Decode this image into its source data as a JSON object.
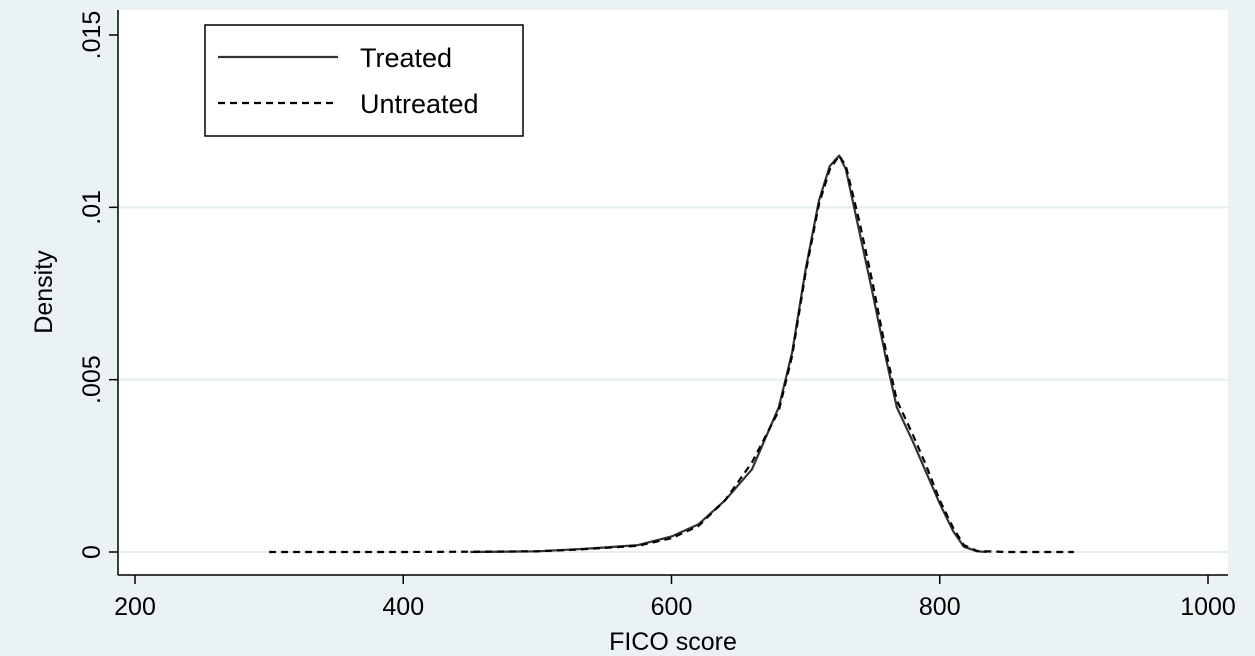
{
  "chart_data": {
    "type": "line",
    "title": "",
    "xlabel": "FICO score",
    "ylabel": "Density",
    "xlim": [
      200,
      1000
    ],
    "ylim": [
      0,
      0.015
    ],
    "x_ticks": [
      200,
      400,
      600,
      800,
      1000
    ],
    "x_tick_labels": [
      "200",
      "400",
      "600",
      "800",
      "1000"
    ],
    "y_ticks": [
      0,
      0.005,
      0.01,
      0.015
    ],
    "y_tick_labels": [
      "0",
      ".005",
      ".01",
      ".015"
    ],
    "grid": true,
    "legend_position": "top-left",
    "series": [
      {
        "name": "Treated",
        "style": "solid",
        "color": "#333333",
        "points": [
          [
            450,
            0
          ],
          [
            500,
            2e-05
          ],
          [
            530,
            8e-05
          ],
          [
            550,
            0.00013
          ],
          [
            575,
            0.0002
          ],
          [
            600,
            0.00045
          ],
          [
            620,
            0.0008
          ],
          [
            640,
            0.0015
          ],
          [
            660,
            0.0024
          ],
          [
            680,
            0.0042
          ],
          [
            690,
            0.0058
          ],
          [
            700,
            0.0082
          ],
          [
            710,
            0.0102
          ],
          [
            718,
            0.0112
          ],
          [
            725,
            0.0115
          ],
          [
            730,
            0.0111
          ],
          [
            740,
            0.0093
          ],
          [
            750,
            0.0075
          ],
          [
            760,
            0.0056
          ],
          [
            768,
            0.0042
          ],
          [
            780,
            0.0032
          ],
          [
            790,
            0.0023
          ],
          [
            800,
            0.0014
          ],
          [
            810,
            0.0006
          ],
          [
            818,
            0.00015
          ],
          [
            828,
            2e-05
          ],
          [
            835,
            0
          ]
        ]
      },
      {
        "name": "Untreated",
        "style": "dashed",
        "color": "#000000",
        "points": [
          [
            300,
            0
          ],
          [
            350,
            0
          ],
          [
            400,
            0
          ],
          [
            450,
            1e-05
          ],
          [
            500,
            2e-05
          ],
          [
            530,
            7e-05
          ],
          [
            550,
            0.00012
          ],
          [
            575,
            0.00018
          ],
          [
            600,
            0.0004
          ],
          [
            620,
            0.00075
          ],
          [
            640,
            0.0015
          ],
          [
            660,
            0.0026
          ],
          [
            680,
            0.0041
          ],
          [
            690,
            0.0057
          ],
          [
            700,
            0.0081
          ],
          [
            710,
            0.0101
          ],
          [
            718,
            0.0111
          ],
          [
            725,
            0.0115
          ],
          [
            730,
            0.0112
          ],
          [
            740,
            0.0096
          ],
          [
            750,
            0.0078
          ],
          [
            760,
            0.0058
          ],
          [
            768,
            0.0044
          ],
          [
            780,
            0.0034
          ],
          [
            790,
            0.0025
          ],
          [
            800,
            0.0015
          ],
          [
            810,
            0.0007
          ],
          [
            818,
            0.0002
          ],
          [
            828,
            3e-05
          ],
          [
            850,
            0
          ],
          [
            900,
            0
          ]
        ]
      }
    ]
  }
}
